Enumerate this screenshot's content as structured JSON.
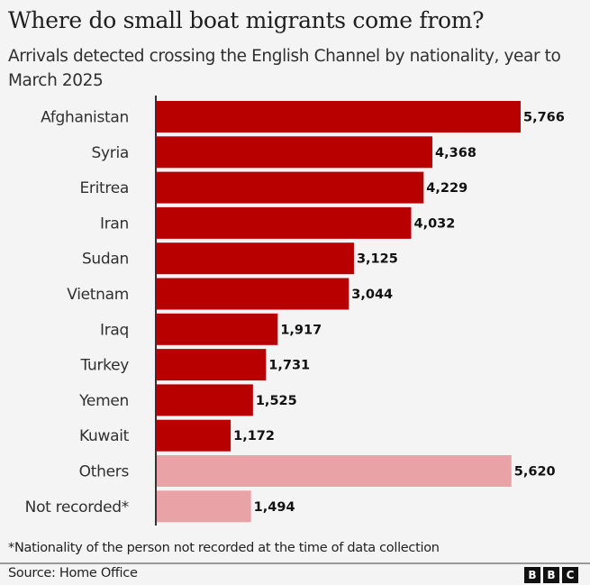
{
  "header": {
    "title": "Where do small boat migrants come from?",
    "subtitle": "Arrivals detected crossing the English Channel by nationality, year to March 2025"
  },
  "chart_data": {
    "type": "bar",
    "orientation": "horizontal",
    "title": "Where do small boat migrants come from?",
    "subtitle": "Arrivals detected crossing the English Channel by nationality, year to March 2025",
    "xlabel": "",
    "ylabel": "",
    "xlim": [
      0,
      5766
    ],
    "grid": false,
    "legend": "none",
    "categories": [
      "Afghanistan",
      "Syria",
      "Eritrea",
      "Iran",
      "Sudan",
      "Vietnam",
      "Iraq",
      "Turkey",
      "Yemen",
      "Kuwait",
      "Others",
      "Not recorded*"
    ],
    "values": [
      5766,
      4368,
      4229,
      4032,
      3125,
      3044,
      1917,
      1731,
      1525,
      1172,
      5620,
      1494
    ],
    "value_labels": [
      "5,766",
      "4,368",
      "4,229",
      "4,032",
      "3,125",
      "3,044",
      "1,917",
      "1,731",
      "1,525",
      "1,172",
      "5,620",
      "1,494"
    ],
    "bar_colors": [
      "#b80000",
      "#b80000",
      "#b80000",
      "#b80000",
      "#b80000",
      "#b80000",
      "#b80000",
      "#b80000",
      "#b80000",
      "#b80000",
      "#e9a2a5",
      "#e9a2a5"
    ],
    "colors": {
      "primary": "#b80000",
      "secondary": "#e9a2a5",
      "axis": "#333333"
    }
  },
  "footer": {
    "footnote": "*Nationality of the person not recorded at the time of data collection",
    "source": "Source: Home Office",
    "logo_letters": [
      "B",
      "B",
      "C"
    ]
  }
}
